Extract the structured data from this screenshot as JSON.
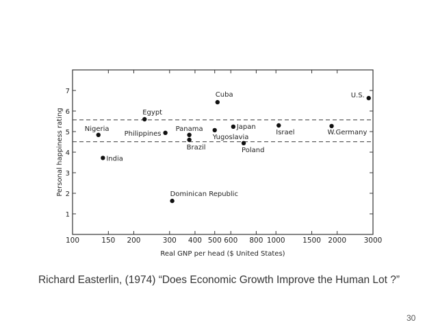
{
  "chart_data": {
    "type": "scatter",
    "title": "",
    "xlabel": "Real GNP per head ($ United States)",
    "ylabel": "Personal happiness rating",
    "xscale": "log",
    "xlim": [
      100,
      3000
    ],
    "ylim": [
      0,
      8
    ],
    "xticks": [
      100,
      150,
      200,
      300,
      400,
      500,
      600,
      800,
      1000,
      1500,
      2000,
      3000
    ],
    "xtick_labels": [
      "100",
      "150",
      "200",
      "300",
      "400",
      "500",
      "600",
      "800",
      "1000",
      "1500",
      "2000",
      "3000"
    ],
    "yticks": [
      1,
      2,
      3,
      4,
      5,
      6,
      7
    ],
    "ytick_labels": [
      "1",
      "2",
      "3",
      "4",
      "5",
      "6",
      "7"
    ],
    "grid": false,
    "reference_lines": [
      5.57,
      4.51
    ],
    "points": [
      {
        "label": "Nigeria",
        "x": 134,
        "y": 4.84
      },
      {
        "label": "India",
        "x": 141,
        "y": 3.72
      },
      {
        "label": "Egypt",
        "x": 226,
        "y": 5.6
      },
      {
        "label": "Philippines",
        "x": 286,
        "y": 4.94
      },
      {
        "label": "Dominican Republic",
        "x": 309,
        "y": 1.63
      },
      {
        "label": "Panama",
        "x": 375,
        "y": 4.84
      },
      {
        "label": "Brazil",
        "x": 375,
        "y": 4.6
      },
      {
        "label": "Yugoslavia",
        "x": 500,
        "y": 5.07
      },
      {
        "label": "Cuba",
        "x": 516,
        "y": 6.43
      },
      {
        "label": "Japan",
        "x": 617,
        "y": 5.24
      },
      {
        "label": "Poland",
        "x": 694,
        "y": 4.44
      },
      {
        "label": "Israel",
        "x": 1032,
        "y": 5.3
      },
      {
        "label": "W.Germany",
        "x": 1878,
        "y": 5.27
      },
      {
        "label": "U.S.",
        "x": 2858,
        "y": 6.63
      }
    ]
  },
  "caption": "Richard Easterlin, (1974) “Does Economic Growth Improve the Human Lot ?”",
  "slide_number": "30"
}
